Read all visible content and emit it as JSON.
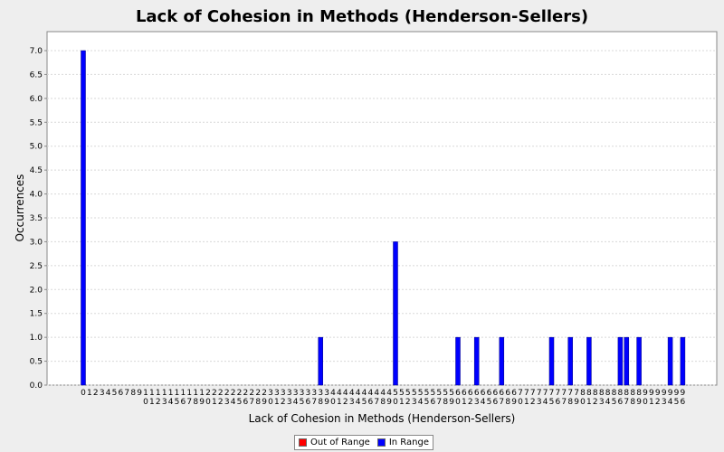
{
  "chart_data": {
    "type": "bar",
    "title": "Lack of Cohesion in Methods (Henderson-Sellers)",
    "xlabel": "Lack of Cohesion in Methods (Henderson-Sellers)",
    "ylabel": "Occurrences",
    "ylim": [
      0,
      7.5
    ],
    "yticks": [
      "0.0",
      "0.5",
      "1.0",
      "1.5",
      "2.0",
      "2.5",
      "3.0",
      "3.5",
      "4.0",
      "4.5",
      "5.0",
      "5.5",
      "6.0",
      "6.5",
      "7.0"
    ],
    "grid": true,
    "legend_position": "bottom",
    "categories_range": [
      0,
      96
    ],
    "series": [
      {
        "name": "Out of Range",
        "color": "#ff0000",
        "points": []
      },
      {
        "name": "In Range",
        "color": "#0000ff",
        "points": [
          {
            "x": 0,
            "y": 7
          },
          {
            "x": 38,
            "y": 1
          },
          {
            "x": 50,
            "y": 3
          },
          {
            "x": 60,
            "y": 1
          },
          {
            "x": 63,
            "y": 1
          },
          {
            "x": 67,
            "y": 1
          },
          {
            "x": 75,
            "y": 1
          },
          {
            "x": 78,
            "y": 1
          },
          {
            "x": 81,
            "y": 1
          },
          {
            "x": 86,
            "y": 1
          },
          {
            "x": 87,
            "y": 1
          },
          {
            "x": 89,
            "y": 1
          },
          {
            "x": 94,
            "y": 1
          },
          {
            "x": 96,
            "y": 1
          }
        ]
      }
    ]
  }
}
